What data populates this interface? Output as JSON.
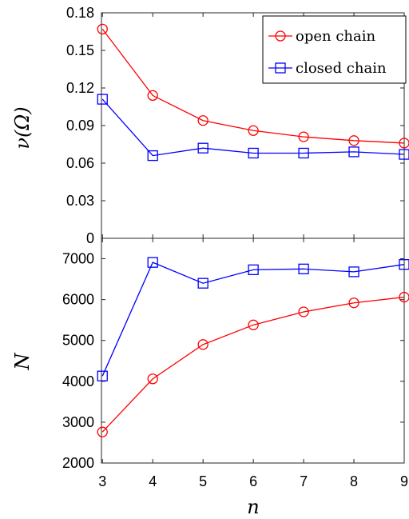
{
  "chart_data": [
    {
      "type": "line",
      "panel": "top",
      "x": [
        3,
        4,
        5,
        6,
        7,
        8,
        9
      ],
      "xlabel": "",
      "ylabel": "ν(Ω)",
      "ylim": [
        0,
        0.18
      ],
      "yticks": [
        "0",
        "0.03",
        "0.06",
        "0.09",
        "0.12",
        "0.15",
        "0.18"
      ],
      "series": [
        {
          "name": "open chain",
          "color": "#ff0000",
          "marker": "circle",
          "values": [
            0.167,
            0.114,
            0.094,
            0.086,
            0.081,
            0.078,
            0.076
          ]
        },
        {
          "name": "closed chain",
          "color": "#0000ff",
          "marker": "square",
          "values": [
            0.111,
            0.066,
            0.072,
            0.068,
            0.068,
            0.069,
            0.067
          ]
        }
      ],
      "legend": "top-right"
    },
    {
      "type": "line",
      "panel": "bottom",
      "x": [
        3,
        4,
        5,
        6,
        7,
        8,
        9
      ],
      "xticks": [
        "3",
        "4",
        "5",
        "6",
        "7",
        "8",
        "9"
      ],
      "xlabel": "n",
      "ylabel": "N",
      "ylim": [
        2000,
        7500
      ],
      "yticks": [
        "2000",
        "3000",
        "4000",
        "5000",
        "6000",
        "7000"
      ],
      "series": [
        {
          "name": "open chain",
          "color": "#ff0000",
          "marker": "circle",
          "values": [
            2760,
            4060,
            4900,
            5380,
            5700,
            5920,
            6060
          ]
        },
        {
          "name": "closed chain",
          "color": "#0000ff",
          "marker": "square",
          "values": [
            4130,
            6910,
            6400,
            6730,
            6750,
            6680,
            6860
          ]
        }
      ]
    }
  ]
}
